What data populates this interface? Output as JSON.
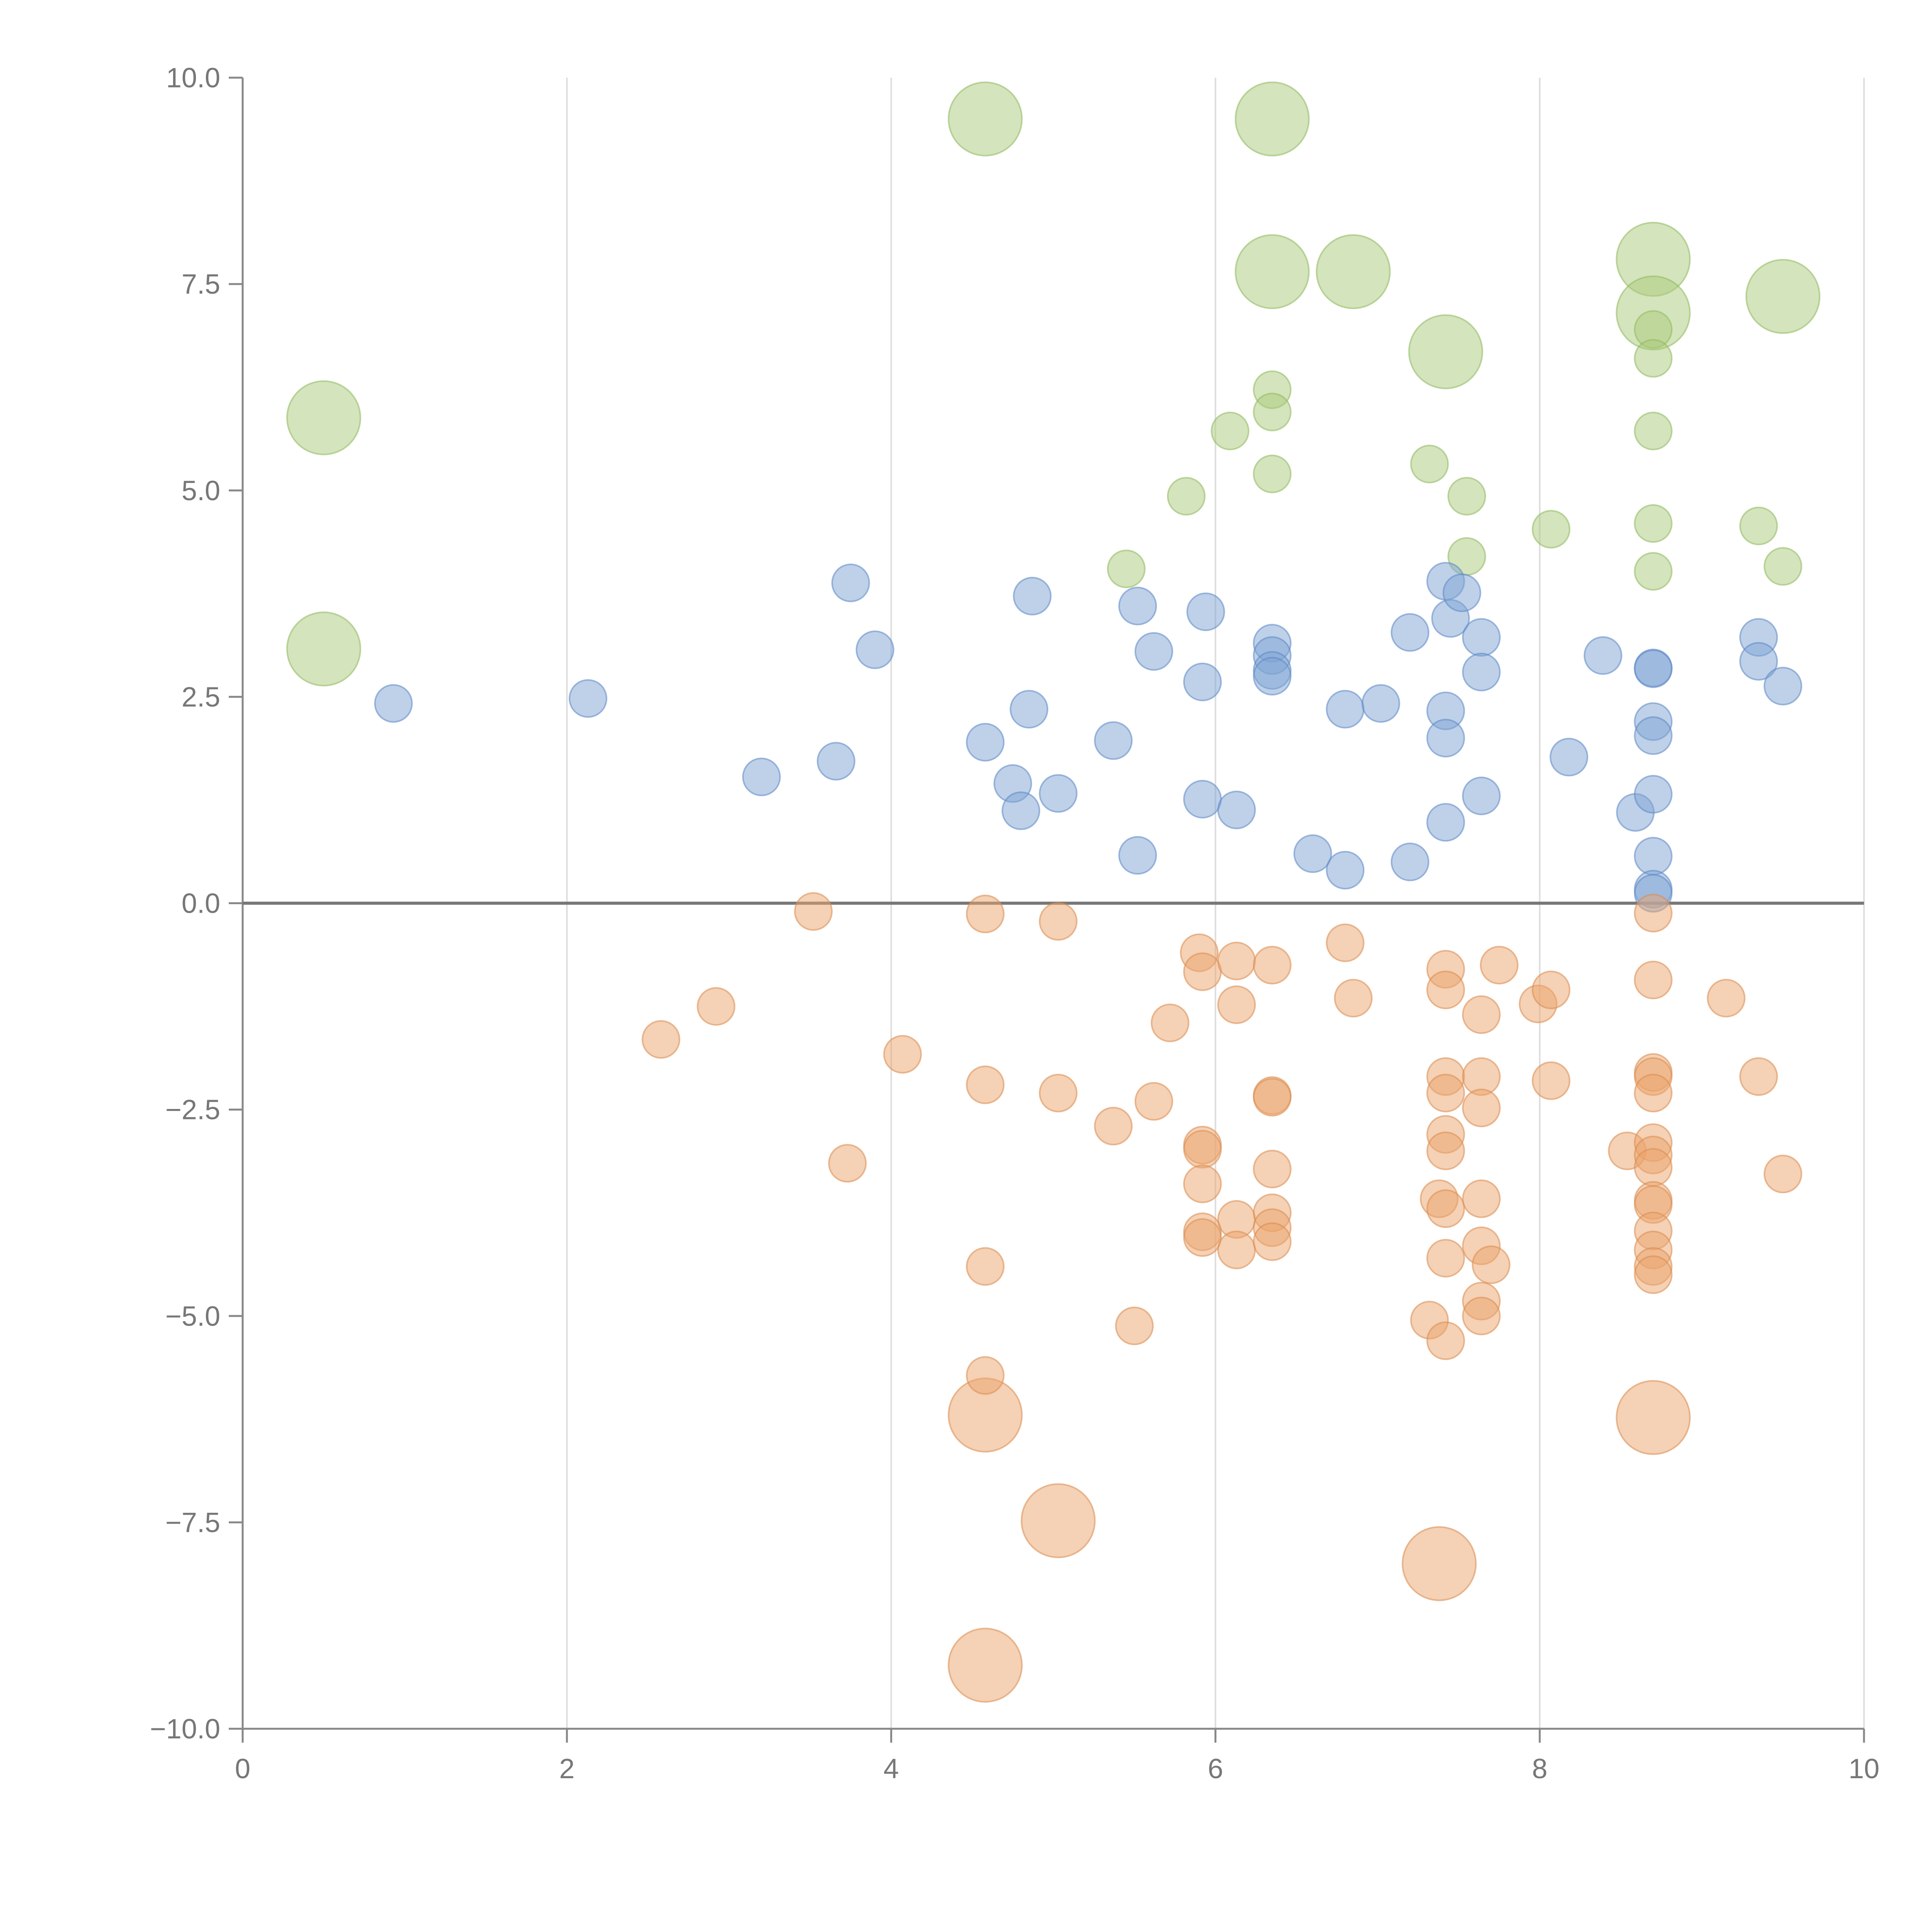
{
  "chart_data": {
    "type": "scatter",
    "title": "",
    "xlabel": "",
    "ylabel": "",
    "xlim": [
      0,
      10
    ],
    "ylim": [
      -10,
      10
    ],
    "x_ticks": [
      "0",
      "2",
      "4",
      "6",
      "8",
      "10"
    ],
    "y_ticks": [
      "10.0",
      "7.5",
      "5.0",
      "2.5",
      "0.0",
      "−2.5",
      "−5.0",
      "−7.5",
      "−10.0"
    ],
    "x_tick_values": [
      0,
      2,
      4,
      6,
      8,
      10
    ],
    "y_tick_values": [
      10,
      7.5,
      5,
      2.5,
      0,
      -2.5,
      -5,
      -7.5,
      -10
    ],
    "grid": "vertical",
    "zero_line": 0,
    "series": [
      {
        "name": "green",
        "color": "#a9c97a",
        "stroke": "#8fb85e",
        "points": [
          {
            "x": 4.58,
            "y": 9.5,
            "size": "large"
          },
          {
            "x": 6.35,
            "y": 9.5,
            "size": "large"
          },
          {
            "x": 6.35,
            "y": 7.65,
            "size": "large"
          },
          {
            "x": 6.85,
            "y": 7.65,
            "size": "large"
          },
          {
            "x": 8.7,
            "y": 7.8,
            "size": "large"
          },
          {
            "x": 8.7,
            "y": 7.15,
            "size": "large"
          },
          {
            "x": 9.5,
            "y": 7.35,
            "size": "large"
          },
          {
            "x": 7.42,
            "y": 6.68,
            "size": "large"
          },
          {
            "x": 0.5,
            "y": 5.88,
            "size": "large"
          },
          {
            "x": 0.5,
            "y": 3.08,
            "size": "large"
          },
          {
            "x": 8.7,
            "y": 6.95,
            "size": "small"
          },
          {
            "x": 8.7,
            "y": 6.6,
            "size": "small"
          },
          {
            "x": 8.7,
            "y": 5.72,
            "size": "small"
          },
          {
            "x": 6.35,
            "y": 6.22,
            "size": "small"
          },
          {
            "x": 6.35,
            "y": 5.95,
            "size": "small"
          },
          {
            "x": 6.09,
            "y": 5.72,
            "size": "small"
          },
          {
            "x": 7.32,
            "y": 5.32,
            "size": "small"
          },
          {
            "x": 6.35,
            "y": 5.2,
            "size": "small"
          },
          {
            "x": 5.82,
            "y": 4.93,
            "size": "small"
          },
          {
            "x": 7.55,
            "y": 4.93,
            "size": "small"
          },
          {
            "x": 8.7,
            "y": 4.6,
            "size": "small"
          },
          {
            "x": 9.35,
            "y": 4.57,
            "size": "small"
          },
          {
            "x": 8.07,
            "y": 4.53,
            "size": "small"
          },
          {
            "x": 7.55,
            "y": 4.2,
            "size": "small"
          },
          {
            "x": 5.45,
            "y": 4.05,
            "size": "small"
          },
          {
            "x": 8.7,
            "y": 4.02,
            "size": "small"
          },
          {
            "x": 9.5,
            "y": 4.08,
            "size": "small"
          }
        ]
      },
      {
        "name": "blue",
        "color": "#7ea3d4",
        "stroke": "#5b86c4",
        "points": [
          {
            "x": 0.93,
            "y": 2.42
          },
          {
            "x": 2.13,
            "y": 2.48
          },
          {
            "x": 3.2,
            "y": 1.53
          },
          {
            "x": 3.66,
            "y": 1.72
          },
          {
            "x": 3.75,
            "y": 3.88
          },
          {
            "x": 3.9,
            "y": 3.07
          },
          {
            "x": 4.58,
            "y": 1.95
          },
          {
            "x": 4.75,
            "y": 1.45
          },
          {
            "x": 4.8,
            "y": 1.12
          },
          {
            "x": 4.85,
            "y": 2.35
          },
          {
            "x": 4.87,
            "y": 3.72
          },
          {
            "x": 5.03,
            "y": 1.33
          },
          {
            "x": 5.37,
            "y": 1.97
          },
          {
            "x": 5.52,
            "y": 0.58
          },
          {
            "x": 5.52,
            "y": 3.6
          },
          {
            "x": 5.62,
            "y": 3.05
          },
          {
            "x": 5.92,
            "y": 2.68
          },
          {
            "x": 5.92,
            "y": 1.26
          },
          {
            "x": 5.94,
            "y": 3.53
          },
          {
            "x": 6.13,
            "y": 1.13
          },
          {
            "x": 6.35,
            "y": 3.15
          },
          {
            "x": 6.35,
            "y": 3.0
          },
          {
            "x": 6.35,
            "y": 2.82
          },
          {
            "x": 6.35,
            "y": 2.75
          },
          {
            "x": 6.6,
            "y": 0.6
          },
          {
            "x": 6.8,
            "y": 0.4
          },
          {
            "x": 6.8,
            "y": 2.35
          },
          {
            "x": 7.02,
            "y": 2.42
          },
          {
            "x": 7.2,
            "y": 3.28
          },
          {
            "x": 7.2,
            "y": 0.5
          },
          {
            "x": 7.42,
            "y": 3.9
          },
          {
            "x": 7.45,
            "y": 3.45
          },
          {
            "x": 7.52,
            "y": 3.76
          },
          {
            "x": 7.42,
            "y": 2.33
          },
          {
            "x": 7.42,
            "y": 2.0
          },
          {
            "x": 7.42,
            "y": 0.98
          },
          {
            "x": 7.64,
            "y": 3.22
          },
          {
            "x": 7.64,
            "y": 2.8
          },
          {
            "x": 7.64,
            "y": 1.3
          },
          {
            "x": 8.18,
            "y": 1.77
          },
          {
            "x": 8.39,
            "y": 3.0
          },
          {
            "x": 8.59,
            "y": 1.1
          },
          {
            "x": 8.7,
            "y": 2.85
          },
          {
            "x": 8.7,
            "y": 2.84
          },
          {
            "x": 8.7,
            "y": 2.2
          },
          {
            "x": 8.7,
            "y": 2.03
          },
          {
            "x": 8.7,
            "y": 1.32
          },
          {
            "x": 8.7,
            "y": 0.57
          },
          {
            "x": 8.7,
            "y": 0.17
          },
          {
            "x": 8.7,
            "y": 0.12
          },
          {
            "x": 9.35,
            "y": 3.22
          },
          {
            "x": 9.35,
            "y": 2.93
          },
          {
            "x": 9.5,
            "y": 2.63
          }
        ]
      },
      {
        "name": "orange",
        "color": "#eba36b",
        "stroke": "#d98a4c",
        "points": [
          {
            "x": 4.58,
            "y": -6.2,
            "size": "large"
          },
          {
            "x": 5.03,
            "y": -7.48,
            "size": "large"
          },
          {
            "x": 7.38,
            "y": -8.0,
            "size": "large"
          },
          {
            "x": 4.58,
            "y": -9.23,
            "size": "large"
          },
          {
            "x": 8.7,
            "y": -6.23,
            "size": "large"
          },
          {
            "x": 3.52,
            "y": -0.1
          },
          {
            "x": 4.58,
            "y": -0.13
          },
          {
            "x": 5.03,
            "y": -0.22
          },
          {
            "x": 2.58,
            "y": -1.65
          },
          {
            "x": 2.92,
            "y": -1.25
          },
          {
            "x": 4.07,
            "y": -1.83
          },
          {
            "x": 3.73,
            "y": -3.15
          },
          {
            "x": 4.58,
            "y": -2.2
          },
          {
            "x": 5.03,
            "y": -2.3
          },
          {
            "x": 5.37,
            "y": -2.7
          },
          {
            "x": 5.62,
            "y": -2.4
          },
          {
            "x": 5.72,
            "y": -1.45
          },
          {
            "x": 5.9,
            "y": -0.6
          },
          {
            "x": 5.92,
            "y": -0.83
          },
          {
            "x": 6.13,
            "y": -0.7
          },
          {
            "x": 6.13,
            "y": -1.23
          },
          {
            "x": 6.35,
            "y": -0.75
          },
          {
            "x": 5.92,
            "y": -2.93
          },
          {
            "x": 5.92,
            "y": -2.98
          },
          {
            "x": 5.92,
            "y": -3.4
          },
          {
            "x": 5.92,
            "y": -3.98
          },
          {
            "x": 5.92,
            "y": -4.05
          },
          {
            "x": 6.13,
            "y": -3.83
          },
          {
            "x": 6.13,
            "y": -4.2
          },
          {
            "x": 6.35,
            "y": -2.33
          },
          {
            "x": 6.35,
            "y": -2.35
          },
          {
            "x": 6.35,
            "y": -3.22
          },
          {
            "x": 6.35,
            "y": -3.75
          },
          {
            "x": 6.35,
            "y": -3.93
          },
          {
            "x": 6.35,
            "y": -4.1
          },
          {
            "x": 5.5,
            "y": -5.12
          },
          {
            "x": 4.58,
            "y": -4.4
          },
          {
            "x": 4.58,
            "y": -5.72
          },
          {
            "x": 6.8,
            "y": -0.48
          },
          {
            "x": 6.85,
            "y": -1.15
          },
          {
            "x": 7.42,
            "y": -0.8
          },
          {
            "x": 7.42,
            "y": -1.05
          },
          {
            "x": 7.64,
            "y": -1.35
          },
          {
            "x": 7.75,
            "y": -0.75
          },
          {
            "x": 7.42,
            "y": -2.1
          },
          {
            "x": 7.42,
            "y": -2.3
          },
          {
            "x": 7.64,
            "y": -2.1
          },
          {
            "x": 7.64,
            "y": -2.48
          },
          {
            "x": 7.42,
            "y": -2.8
          },
          {
            "x": 7.42,
            "y": -3.0
          },
          {
            "x": 7.38,
            "y": -3.58
          },
          {
            "x": 7.42,
            "y": -3.7
          },
          {
            "x": 7.64,
            "y": -3.58
          },
          {
            "x": 7.64,
            "y": -4.15
          },
          {
            "x": 7.7,
            "y": -4.38
          },
          {
            "x": 7.42,
            "y": -4.3
          },
          {
            "x": 7.64,
            "y": -4.82
          },
          {
            "x": 7.64,
            "y": -5.0
          },
          {
            "x": 7.32,
            "y": -5.05
          },
          {
            "x": 7.42,
            "y": -5.3
          },
          {
            "x": 7.99,
            "y": -1.22
          },
          {
            "x": 8.07,
            "y": -1.05
          },
          {
            "x": 8.07,
            "y": -2.15
          },
          {
            "x": 8.54,
            "y": -3.0
          },
          {
            "x": 8.7,
            "y": -0.12
          },
          {
            "x": 8.7,
            "y": -0.93
          },
          {
            "x": 8.7,
            "y": -2.05
          },
          {
            "x": 8.7,
            "y": -2.1
          },
          {
            "x": 8.7,
            "y": -2.3
          },
          {
            "x": 8.7,
            "y": -2.9
          },
          {
            "x": 8.7,
            "y": -3.05
          },
          {
            "x": 8.7,
            "y": -3.2
          },
          {
            "x": 8.7,
            "y": -3.6
          },
          {
            "x": 8.7,
            "y": -3.65
          },
          {
            "x": 8.7,
            "y": -3.97
          },
          {
            "x": 8.7,
            "y": -4.2
          },
          {
            "x": 8.7,
            "y": -4.4
          },
          {
            "x": 8.7,
            "y": -4.5
          },
          {
            "x": 9.15,
            "y": -1.15
          },
          {
            "x": 9.35,
            "y": -2.1
          },
          {
            "x": 9.5,
            "y": -3.28
          }
        ]
      }
    ]
  }
}
